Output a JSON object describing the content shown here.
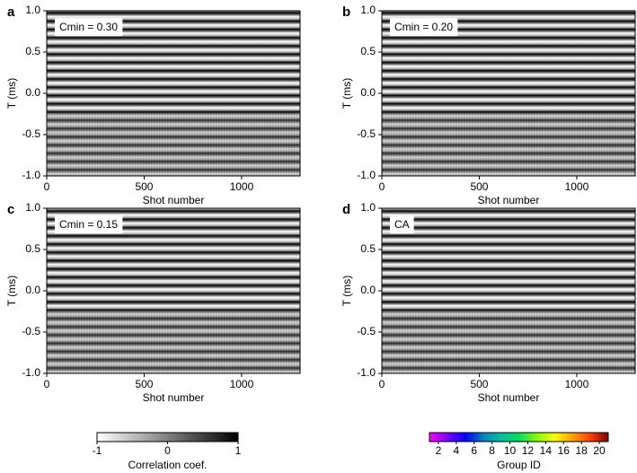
{
  "chart_data": [
    {
      "type": "image",
      "panel_label": "a",
      "annotation": "Cmin = 0.30",
      "xlabel": "Shot number",
      "ylabel": "T (ms)",
      "xlim": [
        0,
        1300
      ],
      "xticks": [
        0,
        500,
        1000
      ],
      "ylim": [
        -1,
        1
      ],
      "yticks": [
        {
          "value": -1,
          "label": "-1.0"
        },
        -0.5,
        {
          "value": 0,
          "label": "0.0"
        },
        0.5,
        {
          "value": 1,
          "label": "1.0"
        }
      ]
    },
    {
      "type": "image",
      "panel_label": "b",
      "annotation": "Cmin = 0.20",
      "xlabel": "Shot number",
      "ylabel": "T (ms)",
      "xlim": [
        0,
        1300
      ],
      "xticks": [
        0,
        500,
        1000
      ],
      "ylim": [
        -1,
        1
      ],
      "yticks": [
        {
          "value": -1,
          "label": "-1.0"
        },
        -0.5,
        {
          "value": 0,
          "label": "0.0"
        },
        0.5,
        {
          "value": 1,
          "label": "1.0"
        }
      ]
    },
    {
      "type": "image",
      "panel_label": "c",
      "annotation": "Cmin = 0.15",
      "xlabel": "Shot number",
      "ylabel": "T (ms)",
      "xlim": [
        0,
        1300
      ],
      "xticks": [
        0,
        500,
        1000
      ],
      "ylim": [
        -1,
        1
      ],
      "yticks": [
        {
          "value": -1,
          "label": "-1.0"
        },
        -0.5,
        {
          "value": 0,
          "label": "0.0"
        },
        0.5,
        {
          "value": 1,
          "label": "1.0"
        }
      ]
    },
    {
      "type": "image",
      "panel_label": "d",
      "annotation": "CA",
      "xlabel": "Shot number",
      "ylabel": "T (ms)",
      "xlim": [
        0,
        1300
      ],
      "xticks": [
        0,
        500,
        1000
      ],
      "ylim": [
        -1,
        1
      ],
      "yticks": [
        {
          "value": -1,
          "label": "-1.0"
        },
        -0.5,
        {
          "value": 0,
          "label": "0.0"
        },
        0.5,
        {
          "value": 1,
          "label": "1.0"
        }
      ]
    },
    {
      "type": "colorbar",
      "label": "Correlation coef.",
      "lim": [
        -1,
        1
      ],
      "ticks": [
        -1,
        0,
        1
      ],
      "colors": [
        "#ffffff",
        "#000000"
      ]
    },
    {
      "type": "colorbar",
      "label": "Group ID",
      "lim": [
        1,
        21
      ],
      "ticks": [
        2,
        4,
        6,
        8,
        10,
        12,
        14,
        16,
        18,
        20
      ],
      "colors": [
        "#ff00ff",
        "#8000ff",
        "#0000ff",
        "#0080c0",
        "#00c0a0",
        "#00e060",
        "#80ff00",
        "#ffff00",
        "#ffa000",
        "#ff4000",
        "#800000"
      ]
    }
  ]
}
